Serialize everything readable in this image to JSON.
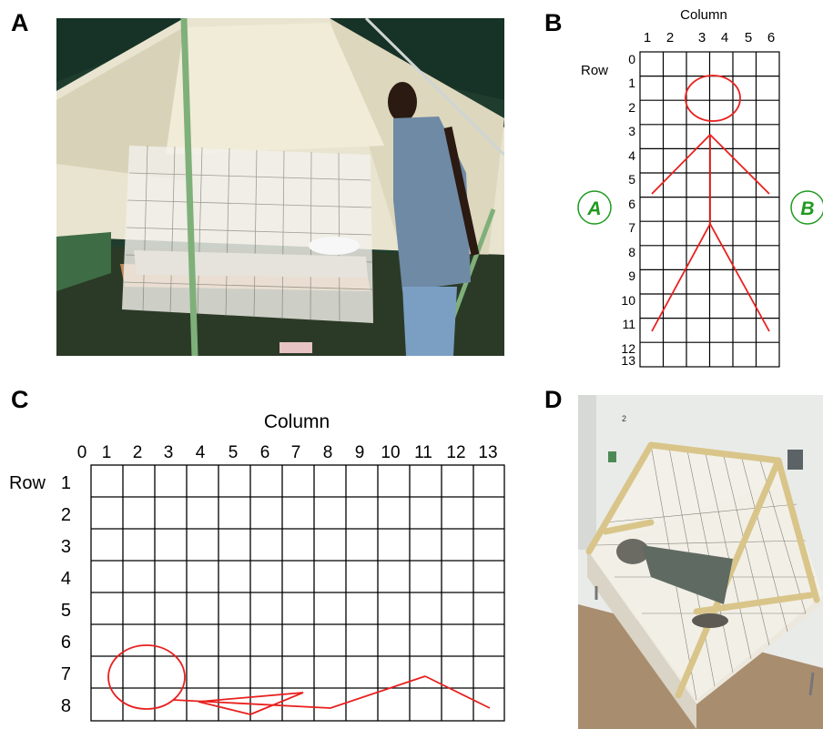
{
  "panels": {
    "a": {
      "letter": "A"
    },
    "b": {
      "letter": "B",
      "column_title": "Column",
      "row_title": "Row",
      "col_labels": [
        "1",
        "2",
        "3",
        "4",
        "5",
        "6"
      ],
      "row_labels": [
        "0",
        "1",
        "2",
        "3",
        "4",
        "5",
        "6",
        "7",
        "8",
        "9",
        "10",
        "11",
        "12",
        "13"
      ],
      "side_left": "A",
      "side_right": "B"
    },
    "c": {
      "letter": "C",
      "column_title": "Column",
      "row_title": "Row",
      "col_labels": [
        "0",
        "1",
        "2",
        "3",
        "4",
        "5",
        "6",
        "7",
        "8",
        "9",
        "10",
        "11",
        "12",
        "13"
      ],
      "row_labels": [
        "1",
        "2",
        "3",
        "4",
        "5",
        "6",
        "7",
        "8"
      ]
    },
    "d": {
      "letter": "D",
      "wall_number": "2"
    }
  },
  "colors": {
    "figure_line": "#e8201e",
    "side_marker": "#1f9a1f",
    "grid": "#000000",
    "tent_canvas": "#e9e4cf",
    "tent_dark": "#1f3d2e",
    "pole": "#7fb07a",
    "wood_frame": "#d9c58a"
  }
}
